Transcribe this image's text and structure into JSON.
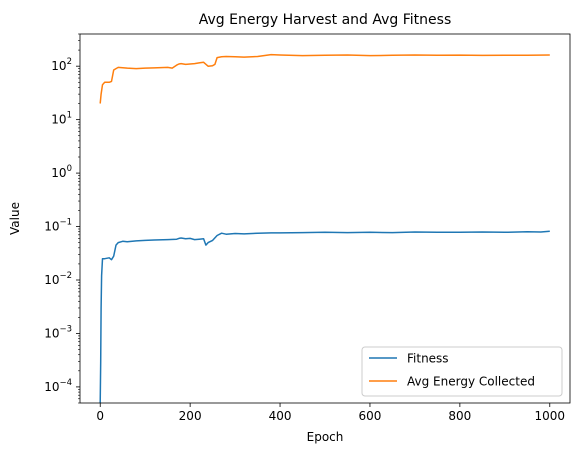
{
  "chart_data": {
    "type": "line",
    "title": "Avg Energy Harvest and Avg Fitness",
    "xlabel": "Epoch",
    "ylabel": "Value",
    "xlim": [
      -45,
      1045
    ],
    "ylim": [
      5e-05,
      400
    ],
    "yscale": "log",
    "grid": false,
    "legend_position": "lower-right",
    "x_ticks": [
      {
        "value": 0,
        "label": "0"
      },
      {
        "value": 200,
        "label": "200"
      },
      {
        "value": 400,
        "label": "400"
      },
      {
        "value": 600,
        "label": "600"
      },
      {
        "value": 800,
        "label": "800"
      },
      {
        "value": 1000,
        "label": "1000"
      }
    ],
    "y_ticks": [
      {
        "value": 0.0001,
        "base": "10",
        "exp": "−4"
      },
      {
        "value": 0.001,
        "base": "10",
        "exp": "−3"
      },
      {
        "value": 0.01,
        "base": "10",
        "exp": "−2"
      },
      {
        "value": 0.1,
        "base": "10",
        "exp": "−1"
      },
      {
        "value": 1,
        "base": "10",
        "exp": "0"
      },
      {
        "value": 10,
        "base": "10",
        "exp": "1"
      },
      {
        "value": 100,
        "base": "10",
        "exp": "2"
      }
    ],
    "series": [
      {
        "name": "Fitness",
        "color": "#1f77b4",
        "x": [
          0,
          1,
          2,
          3,
          5,
          10,
          20,
          25,
          30,
          35,
          40,
          50,
          60,
          80,
          100,
          120,
          150,
          170,
          175,
          180,
          190,
          200,
          210,
          220,
          230,
          235,
          240,
          250,
          260,
          270,
          280,
          300,
          320,
          350,
          380,
          400,
          450,
          500,
          550,
          600,
          650,
          700,
          750,
          800,
          850,
          900,
          950,
          980,
          1000
        ],
        "y": [
          5e-05,
          0.0003,
          0.003,
          0.012,
          0.025,
          0.025,
          0.026,
          0.024,
          0.028,
          0.045,
          0.05,
          0.053,
          0.052,
          0.054,
          0.055,
          0.056,
          0.057,
          0.058,
          0.06,
          0.061,
          0.059,
          0.06,
          0.057,
          0.058,
          0.059,
          0.045,
          0.05,
          0.055,
          0.068,
          0.075,
          0.072,
          0.074,
          0.073,
          0.075,
          0.076,
          0.076,
          0.077,
          0.078,
          0.077,
          0.078,
          0.077,
          0.079,
          0.078,
          0.078,
          0.079,
          0.078,
          0.08,
          0.079,
          0.082
        ]
      },
      {
        "name": "Avg Energy Collected",
        "color": "#ff7f0e",
        "x": [
          0,
          2,
          5,
          10,
          20,
          25,
          30,
          35,
          40,
          60,
          80,
          100,
          120,
          150,
          160,
          170,
          175,
          180,
          190,
          200,
          210,
          220,
          230,
          240,
          250,
          255,
          260,
          270,
          280,
          300,
          320,
          350,
          380,
          400,
          450,
          500,
          550,
          600,
          650,
          700,
          750,
          800,
          850,
          900,
          950,
          1000
        ],
        "y": [
          20,
          30,
          45,
          50,
          50,
          52,
          85,
          90,
          95,
          92,
          90,
          92,
          93,
          95,
          92,
          105,
          110,
          112,
          108,
          110,
          112,
          115,
          118,
          100,
          102,
          108,
          145,
          150,
          152,
          150,
          148,
          152,
          165,
          162,
          158,
          160,
          162,
          158,
          160,
          162,
          160,
          161,
          159,
          160,
          160,
          162
        ]
      }
    ]
  }
}
